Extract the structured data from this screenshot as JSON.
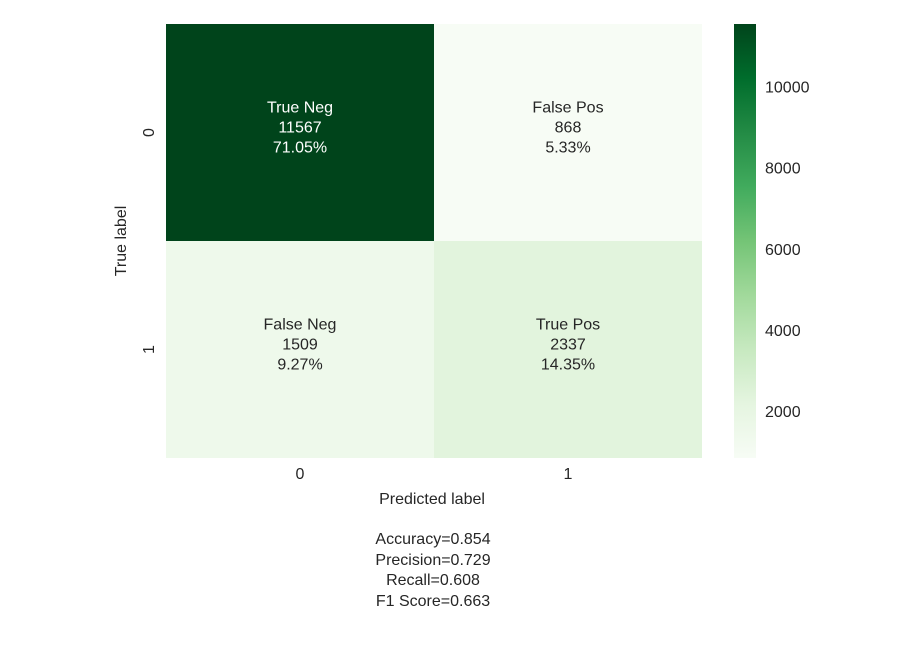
{
  "chart_data": {
    "type": "heatmap",
    "xlabel": "Predicted label",
    "ylabel": "True label",
    "x_categories": [
      "0",
      "1"
    ],
    "y_categories": [
      "0",
      "1"
    ],
    "cells": [
      {
        "row": 0,
        "col": 0,
        "name": "True Neg",
        "count": "11567",
        "percent": "71.05%",
        "value": 11567
      },
      {
        "row": 0,
        "col": 1,
        "name": "False Pos",
        "count": "868",
        "percent": "5.33%",
        "value": 868
      },
      {
        "row": 1,
        "col": 0,
        "name": "False Neg",
        "count": "1509",
        "percent": "9.27%",
        "value": 1509
      },
      {
        "row": 1,
        "col": 1,
        "name": "True Pos",
        "count": "2337",
        "percent": "14.35%",
        "value": 2337
      }
    ],
    "colorbar": {
      "min": 868,
      "max": 11567,
      "ticks": [
        2000,
        4000,
        6000,
        8000,
        10000
      ],
      "tick_labels": [
        "2000",
        "4000",
        "6000",
        "8000",
        "10000"
      ],
      "colormap": "Greens"
    },
    "annotations": {
      "accuracy": "Accuracy=0.854",
      "precision": "Precision=0.729",
      "recall": "Recall=0.608",
      "f1": "F1 Score=0.663"
    },
    "colors": {
      "dark_green": "#00441b",
      "light_green": "#f7fcf5",
      "text_dark": "#262626",
      "text_light": "#ffffff"
    }
  }
}
